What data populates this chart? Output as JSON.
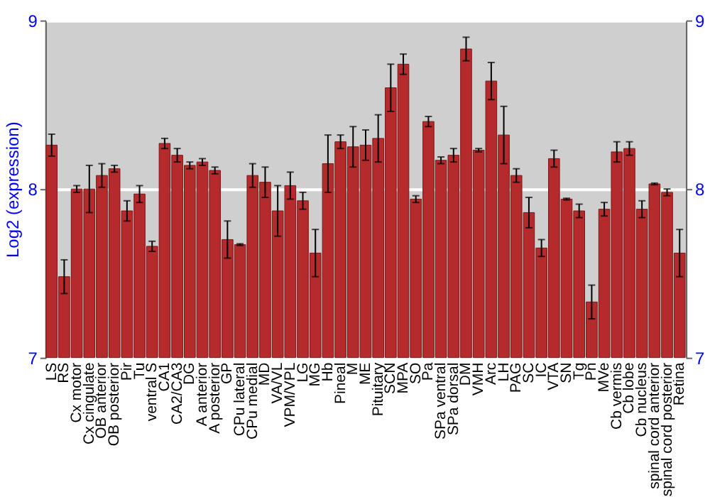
{
  "chart_data": {
    "type": "bar",
    "ylabel": "Log2 (expression)",
    "categories": [
      "LS",
      "RS",
      "Cx motor",
      "Cx cingulate",
      "OB anterior",
      "OB posterior",
      "Pir",
      "Tu",
      "ventral S",
      "CA1",
      "CA2/CA3",
      "DG",
      "A anterior",
      "A posterior",
      "GP",
      "CPu lateral",
      "CPu medial",
      "MD",
      "VA/VL",
      "VPM/VPL",
      "LG",
      "MG",
      "Hb",
      "Pineal",
      "M",
      "ME",
      "Pituitary",
      "SCN",
      "MPA",
      "SO",
      "Pa",
      "SPa ventral",
      "SPa dorsal",
      "DM",
      "VMH",
      "Arc",
      "LH",
      "PAG",
      "SC",
      "IC",
      "VTA",
      "SN",
      "Tg",
      "Pn",
      "MVe",
      "Cb vermis",
      "Cb lobe",
      "Cb nucleus",
      "spinal cord anterior",
      "spinal cord posterior",
      "Retina"
    ],
    "values": [
      8.26,
      7.48,
      8.0,
      8.0,
      8.08,
      8.12,
      7.87,
      7.97,
      7.66,
      8.27,
      8.2,
      8.14,
      8.16,
      8.11,
      7.7,
      7.67,
      8.08,
      8.04,
      7.87,
      8.02,
      7.93,
      7.62,
      8.15,
      8.28,
      8.25,
      8.26,
      8.3,
      8.6,
      8.74,
      7.94,
      8.4,
      8.17,
      8.2,
      8.83,
      8.23,
      8.64,
      8.32,
      8.08,
      7.86,
      7.65,
      8.18,
      7.94,
      7.87,
      7.33,
      7.88,
      8.22,
      8.24,
      7.88,
      8.03,
      7.98,
      7.62
    ],
    "errors": [
      0.065,
      0.1,
      0.02,
      0.14,
      0.07,
      0.02,
      0.06,
      0.05,
      0.03,
      0.03,
      0.04,
      0.02,
      0.02,
      0.02,
      0.11,
      0.005,
      0.07,
      0.09,
      0.15,
      0.08,
      0.05,
      0.14,
      0.17,
      0.04,
      0.12,
      0.09,
      0.14,
      0.14,
      0.06,
      0.02,
      0.03,
      0.02,
      0.04,
      0.07,
      0.01,
      0.11,
      0.17,
      0.04,
      0.09,
      0.05,
      0.05,
      0.005,
      0.04,
      0.1,
      0.04,
      0.06,
      0.04,
      0.05,
      0.005,
      0.02,
      0.14
    ],
    "color": "#b52b2b",
    "ylim": [
      7,
      9
    ],
    "yticks": [
      7,
      8,
      9
    ],
    "y2lim": [
      7,
      9
    ],
    "y2ticks": [
      7,
      8,
      9
    ],
    "grid": "y"
  }
}
